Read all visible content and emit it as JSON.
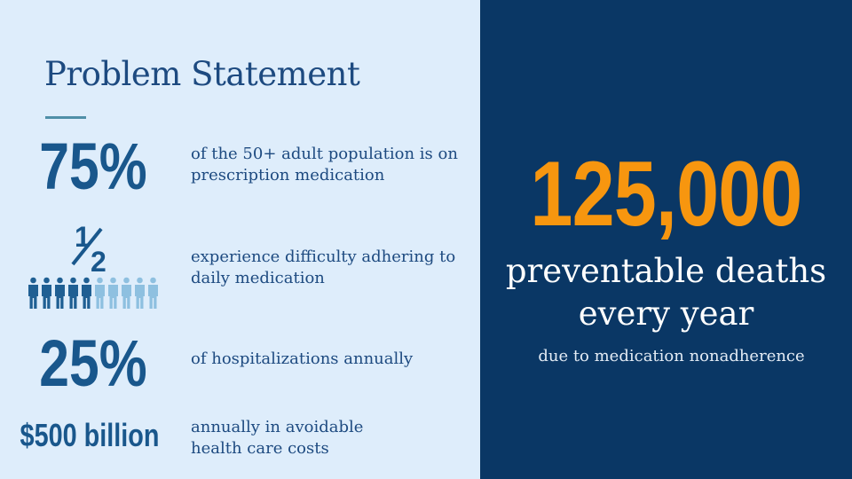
{
  "title": "Problem Statement",
  "stats": [
    {
      "value": "75%",
      "description": "of the 50+ adult population is on prescription medication"
    },
    {
      "value": "½",
      "description": "experience difficulty adhering to daily medication",
      "people_total": 10,
      "people_highlighted": 5
    },
    {
      "value": "25%",
      "description": "of hospitalizations annually"
    },
    {
      "value": "$500 billion",
      "description": "annually in avoidable health care costs"
    }
  ],
  "highlight": {
    "number": "125,000",
    "line1": "preventable deaths",
    "line2": "every year",
    "note": "due to medication nonadherence"
  },
  "colors": {
    "left_bg": "#deedfb",
    "right_bg": "#0a3765",
    "stat_blue": "#19578c",
    "accent_orange": "#f7960f",
    "person_dark": "#1f5f93",
    "person_light": "#8ec0e0"
  },
  "icons": [
    "person-icon",
    "one-half-glyph"
  ]
}
